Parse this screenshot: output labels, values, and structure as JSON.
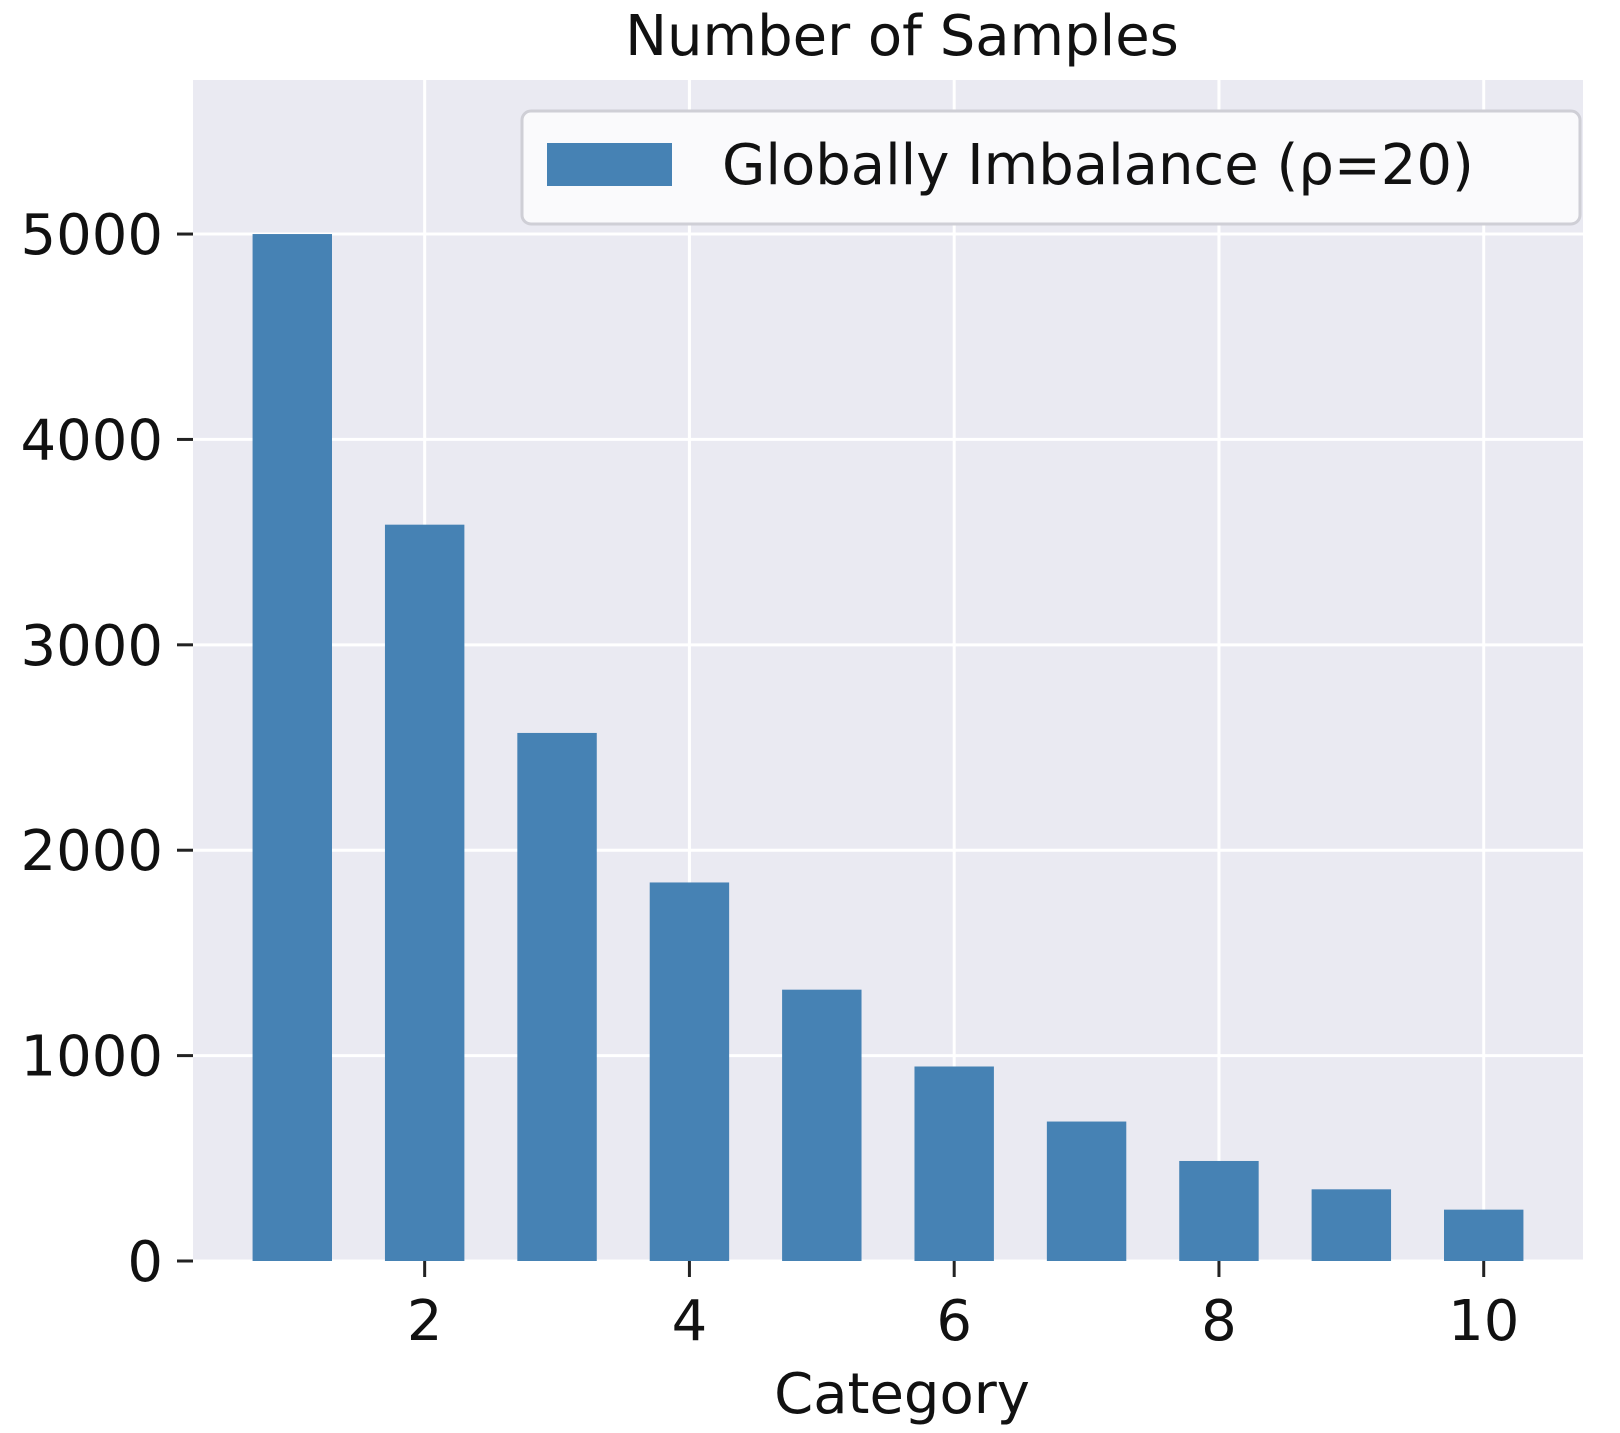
{
  "chart_data": {
    "type": "bar",
    "title": "Number of Samples",
    "xlabel": "Category",
    "ylabel": "",
    "x": [
      1,
      2,
      3,
      4,
      5,
      6,
      7,
      8,
      9,
      10
    ],
    "series": [
      {
        "name": "Globally Imbalance (ρ=20)",
        "values": [
          5000,
          3585,
          2571,
          1843,
          1321,
          947,
          679,
          487,
          349,
          250
        ],
        "color": "#4682b4"
      }
    ],
    "xlim": [
      0.25,
      10.75
    ],
    "ylim": [
      0,
      5750
    ],
    "xticks": [
      2,
      4,
      6,
      8,
      10
    ],
    "yticks": [
      0,
      1000,
      2000,
      3000,
      4000,
      5000
    ],
    "grid": true,
    "legend_position": "top-right",
    "style": {
      "plot_background": "#eaeaf2",
      "grid_color": "#ffffff"
    }
  }
}
